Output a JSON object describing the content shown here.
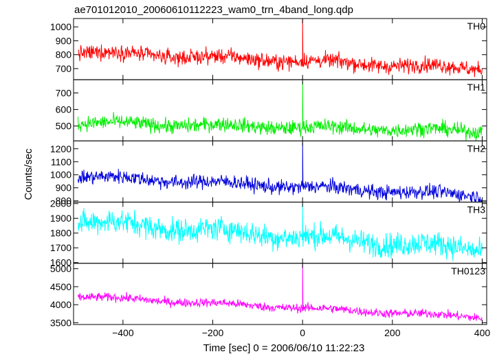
{
  "chart_data": {
    "type": "line",
    "title": "ae701012010_20060610112223_wam0_trn_4band_long.qdp",
    "xlabel": "Time [sec] 0 = 2006/06/10 11:22:23",
    "ylabel": "Counts/sec",
    "xlim": [
      -510,
      410
    ],
    "xticks": [
      -400,
      -200,
      0,
      200,
      400
    ],
    "xtick_labels": [
      "−400",
      "−200",
      "0",
      "200",
      "400"
    ],
    "grid": false,
    "panels": [
      {
        "name": "TH0",
        "color": "#ff0000",
        "ylim": [
          620,
          1060
        ],
        "yticks": [
          700,
          800,
          900,
          1000
        ],
        "series": {
          "name": "TH0",
          "x_start": -500,
          "x_end": 400,
          "start_level": 820,
          "end_level": 700,
          "noise": 50,
          "spike_at": 0,
          "spike_peak": 1060
        }
      },
      {
        "name": "TH1",
        "color": "#00ee00",
        "ylim": [
          410,
          780
        ],
        "yticks": [
          500,
          600,
          700
        ],
        "series": {
          "name": "TH1",
          "x_start": -500,
          "x_end": 400,
          "start_level": 520,
          "end_level": 470,
          "noise": 40,
          "spike_at": 0,
          "spike_peak": 770
        }
      },
      {
        "name": "TH2",
        "color": "#0000dd",
        "ylim": [
          790,
          1260
        ],
        "yticks": [
          800,
          900,
          1000,
          1100,
          1200
        ],
        "series": {
          "name": "TH2",
          "x_start": -500,
          "x_end": 400,
          "start_level": 990,
          "end_level": 840,
          "noise": 50,
          "spike_at": 0,
          "spike_peak": 1250
        }
      },
      {
        "name": "TH3",
        "color": "#00ffff",
        "ylim": [
          1595,
          2010
        ],
        "yticks": [
          1600,
          1700,
          1800,
          1900,
          2000
        ],
        "series": {
          "name": "TH3",
          "x_start": -500,
          "x_end": 400,
          "start_level": 1880,
          "end_level": 1690,
          "noise": 75,
          "spike_at": 0,
          "spike_peak": 2000
        }
      },
      {
        "name": "TH0123",
        "color": "#ff00ff",
        "ylim": [
          3450,
          5150
        ],
        "yticks": [
          3500,
          4000,
          4500,
          5000
        ],
        "series": {
          "name": "TH0123",
          "x_start": -500,
          "x_end": 400,
          "start_level": 4230,
          "end_level": 3650,
          "noise": 110,
          "spike_at": 0,
          "spike_peak": 5120
        }
      }
    ]
  }
}
